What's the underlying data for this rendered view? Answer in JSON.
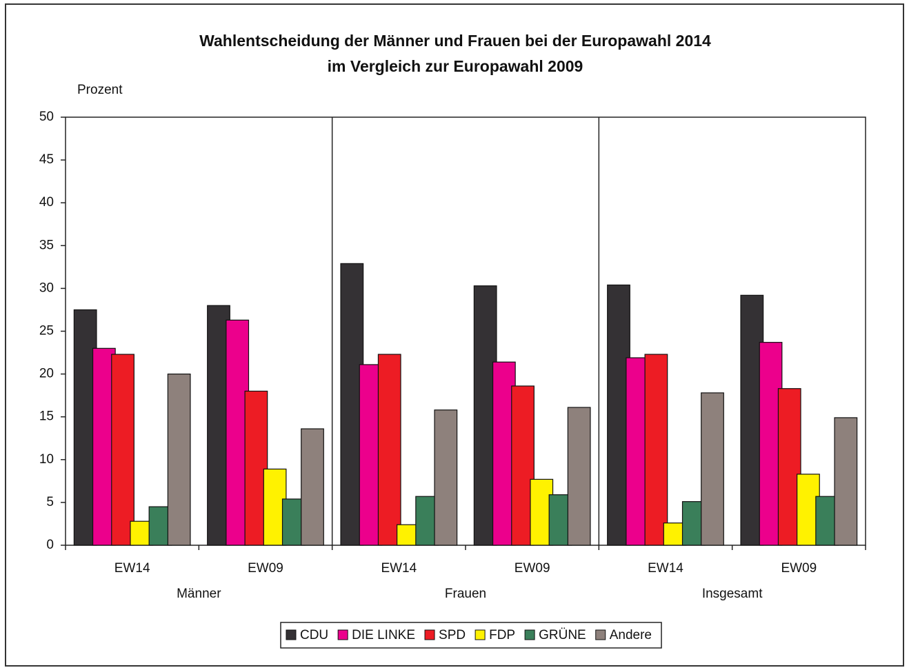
{
  "chart_data": {
    "type": "bar",
    "title": [
      "Wahlentscheidung der Männer und Frauen bei der Europawahl 2014",
      "im Vergleich zur Europawahl 2009"
    ],
    "y_label": "Prozent",
    "categories": [
      "EW14",
      "EW09",
      "EW14",
      "EW09",
      "EW14",
      "EW09"
    ],
    "groups": [
      "Männer",
      "Frauen",
      "Insgesamt"
    ],
    "series": [
      {
        "name": "CDU",
        "color": "#343134",
        "values": [
          27.5,
          28.0,
          32.9,
          30.3,
          30.4,
          29.2
        ]
      },
      {
        "name": "DIE LINKE",
        "color": "#ec008c",
        "values": [
          23.0,
          26.3,
          21.1,
          21.4,
          21.9,
          23.7
        ]
      },
      {
        "name": "SPD",
        "color": "#ed1c24",
        "values": [
          22.3,
          18.0,
          22.3,
          18.6,
          22.3,
          18.3
        ]
      },
      {
        "name": "FDP",
        "color": "#fff200",
        "values": [
          2.8,
          8.9,
          2.4,
          7.7,
          2.6,
          8.3
        ]
      },
      {
        "name": "GRÜNE",
        "color": "#3a7f5a",
        "values": [
          4.5,
          5.4,
          5.7,
          5.9,
          5.1,
          5.7
        ]
      },
      {
        "name": "Andere",
        "color": "#8e817c",
        "values": [
          20.0,
          13.6,
          15.8,
          16.1,
          17.8,
          14.9
        ]
      }
    ],
    "ylim": [
      0,
      50
    ],
    "yticks": [
      0,
      5,
      10,
      15,
      20,
      25,
      30,
      35,
      40,
      45,
      50
    ],
    "legend": "bottom"
  }
}
